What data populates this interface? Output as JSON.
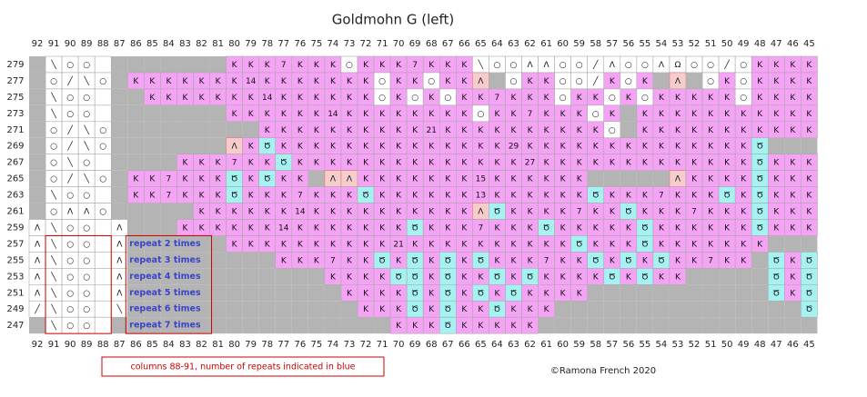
{
  "title": "Goldmohn G (left)",
  "note": "columns 88-91, number of repeats indicated in blue",
  "copyright": "©Ramona French 2020",
  "palette": {
    "g": "#b4b4b4",
    "p": "#f5a3f5",
    "c": "#a6f2f2",
    "w": "#ffffff",
    "r": "#f7cccc"
  },
  "columns": [
    92,
    91,
    90,
    89,
    88,
    87,
    86,
    85,
    84,
    83,
    82,
    81,
    80,
    79,
    78,
    77,
    76,
    75,
    74,
    73,
    72,
    71,
    70,
    69,
    68,
    67,
    66,
    65,
    64,
    63,
    62,
    61,
    60,
    59,
    58,
    57,
    56,
    55,
    54,
    53,
    52,
    51,
    50,
    49,
    48,
    47,
    46,
    45
  ],
  "repeats": [
    "repeat 2 times",
    "repeat 3 times",
    "repeat 4 times",
    "repeat 5 times",
    "repeat 6 times",
    "repeat 7 times"
  ],
  "rows": [
    {
      "label": 279,
      "fills": "gwwww ggggggg pppppppwpp pppppwwwww wwwwwwwwww wwpppp",
      "cells": [
        null,
        "╲",
        "○",
        "○",
        null,
        null,
        null,
        null,
        null,
        null,
        null,
        null,
        "K",
        "K",
        "K",
        "7",
        "K",
        "K",
        "K",
        "○",
        "K",
        "K",
        "K",
        "7",
        "K",
        "K",
        "K",
        "╲",
        "○",
        "○",
        "Λ",
        "Λ",
        "○",
        "○",
        "╱",
        "Λ",
        "○",
        "○",
        "Λ",
        "Ω",
        "○",
        "○",
        "╱",
        "○",
        "K",
        "K",
        "K",
        "K"
      ]
    },
    {
      "label": 277,
      "fills": "gwwww gpppppp pppppppppw ppwpprgwpp wwwpwpgrgw pwpppp",
      "cells": [
        null,
        "○",
        "╱",
        "╲",
        "○",
        null,
        "K",
        "K",
        "K",
        "K",
        "K",
        "K",
        "K",
        "14",
        "K",
        "K",
        "K",
        "K",
        "K",
        "K",
        "K",
        "○",
        "K",
        "K",
        "○",
        "K",
        "K",
        "Λ",
        null,
        "○",
        "K",
        "K",
        "○",
        "○",
        "╱",
        "K",
        "○",
        "K",
        null,
        "Λ",
        null,
        "○",
        "K",
        "○",
        "K",
        "K",
        "K",
        "K"
      ]
    },
    {
      "label": 275,
      "fills": "gwwww ggppppp pppppppppw pwpwpppppp wppwpwpppp pwpppp",
      "cells": [
        null,
        "╲",
        "○",
        "○",
        null,
        null,
        null,
        "K",
        "K",
        "K",
        "K",
        "K",
        "K",
        "K",
        "14",
        "K",
        "K",
        "K",
        "K",
        "K",
        "K",
        "○",
        "K",
        "○",
        "K",
        "○",
        "K",
        "K",
        "7",
        "K",
        "K",
        "K",
        "○",
        "K",
        "K",
        "○",
        "K",
        "○",
        "K",
        "K",
        "K",
        "K",
        "K",
        "○",
        "K",
        "K",
        "K",
        "K"
      ]
    },
    {
      "label": 273,
      "fills": "gwwww ggggggg pppppppppp pppppwpppp ppwpgppppp pppppp",
      "cells": [
        null,
        "╲",
        "○",
        "○",
        null,
        null,
        null,
        null,
        null,
        null,
        null,
        null,
        "K",
        "K",
        "K",
        "K",
        "K",
        "K",
        "14",
        "K",
        "K",
        "K",
        "K",
        "K",
        "K",
        "K",
        "K",
        "○",
        "K",
        "K",
        "7",
        "K",
        "K",
        "K",
        "○",
        "K",
        null,
        "K",
        "K",
        "K",
        "K",
        "K",
        "K",
        "K",
        "K",
        "K",
        "K",
        "K"
      ]
    },
    {
      "label": 271,
      "fills": "gwwww ggggggg ggpppppppp pppppppppp pppwgppppp pppppp",
      "cells": [
        null,
        "○",
        "╱",
        "╲",
        "○",
        null,
        null,
        null,
        null,
        null,
        null,
        null,
        null,
        null,
        "K",
        "K",
        "K",
        "K",
        "K",
        "K",
        "K",
        "K",
        "K",
        "K",
        "21",
        "K",
        "K",
        "K",
        "K",
        "K",
        "K",
        "K",
        "K",
        "K",
        "K",
        "○",
        null,
        "K",
        "K",
        "K",
        "K",
        "K",
        "K",
        "K",
        "K",
        "K",
        "K",
        "K"
      ]
    },
    {
      "label": 269,
      "fills": "gwwww ggggggg rpcppppppp pppppppppp pppppppppp ppcggg",
      "cells": [
        null,
        "○",
        "╱",
        "╲",
        "○",
        null,
        null,
        null,
        null,
        null,
        null,
        null,
        "Λ",
        "K",
        "Ծ",
        "K",
        "K",
        "K",
        "K",
        "K",
        "K",
        "K",
        "K",
        "K",
        "K",
        "K",
        "K",
        "K",
        "K",
        "29",
        "K",
        "K",
        "K",
        "K",
        "K",
        "K",
        "K",
        "K",
        "K",
        "K",
        "K",
        "K",
        "K",
        "K",
        "Ծ",
        null,
        null,
        null
      ]
    },
    {
      "label": 267,
      "fills": "gwwww ggggppp pppcpppppp pppppppppp pppppppppp ppcppp",
      "cells": [
        null,
        "○",
        "╲",
        "○",
        null,
        null,
        null,
        null,
        null,
        "K",
        "K",
        "K",
        "7",
        "K",
        "K",
        "Ծ",
        "K",
        "K",
        "K",
        "K",
        "K",
        "K",
        "K",
        "K",
        "K",
        "K",
        "K",
        "K",
        "K",
        "K",
        "27",
        "K",
        "K",
        "K",
        "K",
        "K",
        "K",
        "K",
        "K",
        "K",
        "K",
        "K",
        "K",
        "K",
        "Ծ",
        "K",
        "K",
        "K"
      ]
    },
    {
      "label": 265,
      "fills": "gwwww gpppppp cpcppgrrpp pppppppppp ppgggggrpp ppcppp",
      "cells": [
        null,
        "○",
        "╱",
        "╲",
        "○",
        null,
        "K",
        "K",
        "7",
        "K",
        "K",
        "K",
        "Ծ",
        "K",
        "Ծ",
        "K",
        "K",
        null,
        "Λ",
        "Λ",
        "K",
        "K",
        "K",
        "K",
        "K",
        "K",
        "K",
        "15",
        "K",
        "K",
        "K",
        "K",
        "K",
        "K",
        null,
        null,
        null,
        null,
        null,
        "Λ",
        "K",
        "K",
        "K",
        "K",
        "Ծ",
        "K",
        "K",
        "K"
      ]
    },
    {
      "label": 263,
      "fills": "gwwww gpppppp cpppppppcp pppppppppp ppcppppppp cpcppp",
      "cells": [
        null,
        "╲",
        "○",
        "○",
        null,
        null,
        "K",
        "K",
        "7",
        "K",
        "K",
        "K",
        "Ծ",
        "K",
        "K",
        "K",
        "7",
        "K",
        "K",
        "K",
        "Ծ",
        "K",
        "K",
        "K",
        "K",
        "K",
        "K",
        "13",
        "K",
        "K",
        "K",
        "K",
        "K",
        "K",
        "Ծ",
        "K",
        "K",
        "K",
        "7",
        "K",
        "K",
        "K",
        "Ծ",
        "K",
        "Ծ",
        "K",
        "K",
        "K"
      ]
    },
    {
      "label": 261,
      "fills": "gwwww gggggpp pppppppppp ppppprcppp ppppcppppp ppcppp",
      "cells": [
        null,
        "○",
        "Λ",
        "Λ",
        "○",
        null,
        null,
        null,
        null,
        null,
        "K",
        "K",
        "K",
        "K",
        "K",
        "K",
        "14",
        "K",
        "K",
        "K",
        "K",
        "K",
        "K",
        "K",
        "K",
        "K",
        "K",
        "Λ",
        "Ծ",
        "K",
        "K",
        "K",
        "K",
        "7",
        "K",
        "K",
        "Ծ",
        "K",
        "K",
        "K",
        "7",
        "K",
        "K",
        "K",
        "Ծ",
        "K",
        "K",
        "K"
      ]
    },
    {
      "label": 259,
      "fills": "wwwww wgggppp pppppppppp pcpppppppc pppppcpppp ppcppp",
      "cells": [
        "Λ",
        "╲",
        "○",
        "○",
        null,
        "Λ",
        null,
        null,
        null,
        "K",
        "K",
        "K",
        "K",
        "K",
        "K",
        "14",
        "K",
        "K",
        "K",
        "K",
        "K",
        "K",
        "K",
        "Ծ",
        "K",
        "K",
        "K",
        "7",
        "K",
        "K",
        "K",
        "Ծ",
        "K",
        "K",
        "K",
        "K",
        "K",
        "Ծ",
        "K",
        "K",
        "K",
        "K",
        "K",
        "K",
        "Ծ",
        "K",
        "K",
        "K"
      ]
    },
    {
      "label": 257,
      "fills": "wwwww wgggggg pppppppppp pppppppppp pcpppcpppp pppggg",
      "cells": [
        "Λ",
        "╲",
        "○",
        "○",
        null,
        "Λ",
        null,
        null,
        null,
        null,
        null,
        null,
        "K",
        "K",
        "K",
        "K",
        "K",
        "K",
        "K",
        "K",
        "K",
        "K",
        "21",
        "K",
        "K",
        "K",
        "K",
        "K",
        "K",
        "K",
        "K",
        "K",
        "K",
        "Ծ",
        "K",
        "K",
        "K",
        "Ծ",
        "K",
        "K",
        "K",
        "K",
        "K",
        "K",
        "K",
        null,
        null,
        null
      ]
    },
    {
      "label": 255,
      "fills": "wwwww wgggggg gggppppppc pcpcpcpppp ppcpcpcppp ppgcpc",
      "cells": [
        "Λ",
        "╲",
        "○",
        "○",
        null,
        "Λ",
        null,
        null,
        null,
        null,
        null,
        null,
        null,
        null,
        null,
        "K",
        "K",
        "K",
        "7",
        "K",
        "K",
        "Ծ",
        "K",
        "Ծ",
        "K",
        "Ծ",
        "K",
        "Ծ",
        "K",
        "K",
        "K",
        "7",
        "K",
        "K",
        "Ծ",
        "K",
        "Ծ",
        "K",
        "Ծ",
        "K",
        "K",
        "7",
        "K",
        "K",
        null,
        "Ծ",
        "K",
        "Ծ"
      ]
    },
    {
      "label": 253,
      "fills": "wwwww wgggggg ggggggpppp ccpcppcpcp pppcpcppgg gggcpc",
      "cells": [
        "Λ",
        "╲",
        "○",
        "○",
        null,
        "Λ",
        null,
        null,
        null,
        null,
        null,
        null,
        null,
        null,
        null,
        null,
        null,
        null,
        "K",
        "K",
        "K",
        "K",
        "Ծ",
        "Ծ",
        "K",
        "Ծ",
        "K",
        "K",
        "Ծ",
        "K",
        "Ծ",
        "K",
        "K",
        "K",
        "K",
        "Ծ",
        "K",
        "Ծ",
        "K",
        "K",
        null,
        null,
        null,
        null,
        null,
        "Ծ",
        "K",
        "Ծ"
      ]
    },
    {
      "label": 251,
      "fills": "wwwww wgggggg gggggggppp pcpcpcpcpp ppgggggggg gggcpc",
      "cells": [
        "Λ",
        "╲",
        "○",
        "○",
        null,
        "Λ",
        null,
        null,
        null,
        null,
        null,
        null,
        null,
        null,
        null,
        null,
        null,
        null,
        null,
        "K",
        "K",
        "K",
        "K",
        "Ծ",
        "K",
        "Ծ",
        "K",
        "Ծ",
        "K",
        "Ծ",
        "K",
        "K",
        "K",
        "K",
        null,
        null,
        null,
        null,
        null,
        null,
        null,
        null,
        null,
        null,
        null,
        "Ծ",
        "K",
        "Ծ"
      ]
    },
    {
      "label": 249,
      "fills": "wwwww wgggggg ggggggggpp pcpcppcppp gggggggggg gggggc",
      "cells": [
        "╱",
        "╲",
        "○",
        "○",
        null,
        "╲",
        null,
        null,
        null,
        null,
        null,
        null,
        null,
        null,
        null,
        null,
        null,
        null,
        null,
        null,
        "K",
        "K",
        "K",
        "Ծ",
        "K",
        "Ծ",
        "K",
        "K",
        "Ծ",
        "K",
        "K",
        "K",
        null,
        null,
        null,
        null,
        null,
        null,
        null,
        null,
        null,
        null,
        null,
        null,
        null,
        null,
        null,
        "Ծ"
      ]
    },
    {
      "label": 247,
      "fills": "gwwww ggggggg gggggggggg pppcpppppg gggggggggg gggggg",
      "cells": [
        null,
        "╲",
        "○",
        "○",
        null,
        null,
        null,
        null,
        null,
        null,
        null,
        null,
        null,
        null,
        null,
        null,
        null,
        null,
        null,
        null,
        null,
        null,
        "K",
        "K",
        "K",
        "Ծ",
        "K",
        "K",
        "K",
        "K",
        "K",
        null,
        null,
        null,
        null,
        null,
        null,
        null,
        null,
        null,
        null,
        null,
        null,
        null,
        null,
        null,
        null,
        null
      ]
    }
  ]
}
